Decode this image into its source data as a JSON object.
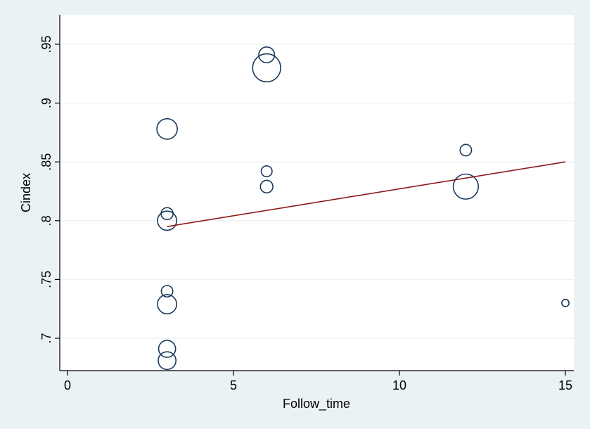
{
  "chart_data": {
    "type": "scatter",
    "title": "",
    "xlabel": "Follow_time",
    "ylabel": "Cindex",
    "xlim": [
      0,
      15
    ],
    "ylim": [
      0.68,
      0.95
    ],
    "x_ticks": [
      0,
      5,
      10,
      15
    ],
    "x_tick_labels": [
      "0",
      "5",
      "10",
      "15"
    ],
    "y_ticks": [
      0.7,
      0.75,
      0.8,
      0.85,
      0.9,
      0.95
    ],
    "y_tick_labels": [
      ".7",
      ".75",
      ".8",
      ".85",
      ".9",
      ".95"
    ],
    "grid": {
      "horizontal": true,
      "vertical": false
    },
    "legend": "none",
    "marker_style": "hollow-circle",
    "marker_color": "#1A3A5C",
    "fit_line_color": "#8B1A1A",
    "plot_background": "#FFFFFF",
    "figure_background": "#EAF2F3",
    "grid_color": "#EAF2F3",
    "points": [
      {
        "x": 3,
        "y": 0.878,
        "weight": 1.6
      },
      {
        "x": 3,
        "y": 0.806,
        "weight": 0.55
      },
      {
        "x": 3,
        "y": 0.8,
        "weight": 1.4
      },
      {
        "x": 3,
        "y": 0.74,
        "weight": 0.5
      },
      {
        "x": 3,
        "y": 0.729,
        "weight": 1.4
      },
      {
        "x": 3,
        "y": 0.691,
        "weight": 1.1
      },
      {
        "x": 3,
        "y": 0.681,
        "weight": 1.2
      },
      {
        "x": 6,
        "y": 0.941,
        "weight": 0.95
      },
      {
        "x": 6,
        "y": 0.93,
        "weight": 3.0
      },
      {
        "x": 6,
        "y": 0.842,
        "weight": 0.45
      },
      {
        "x": 6,
        "y": 0.829,
        "weight": 0.6
      },
      {
        "x": 12,
        "y": 0.86,
        "weight": 0.5
      },
      {
        "x": 12,
        "y": 0.829,
        "weight": 2.4
      },
      {
        "x": 15,
        "y": 0.73,
        "weight": 0.2
      }
    ],
    "fit_line": {
      "x": [
        3,
        15
      ],
      "y": [
        0.795,
        0.85
      ]
    }
  }
}
